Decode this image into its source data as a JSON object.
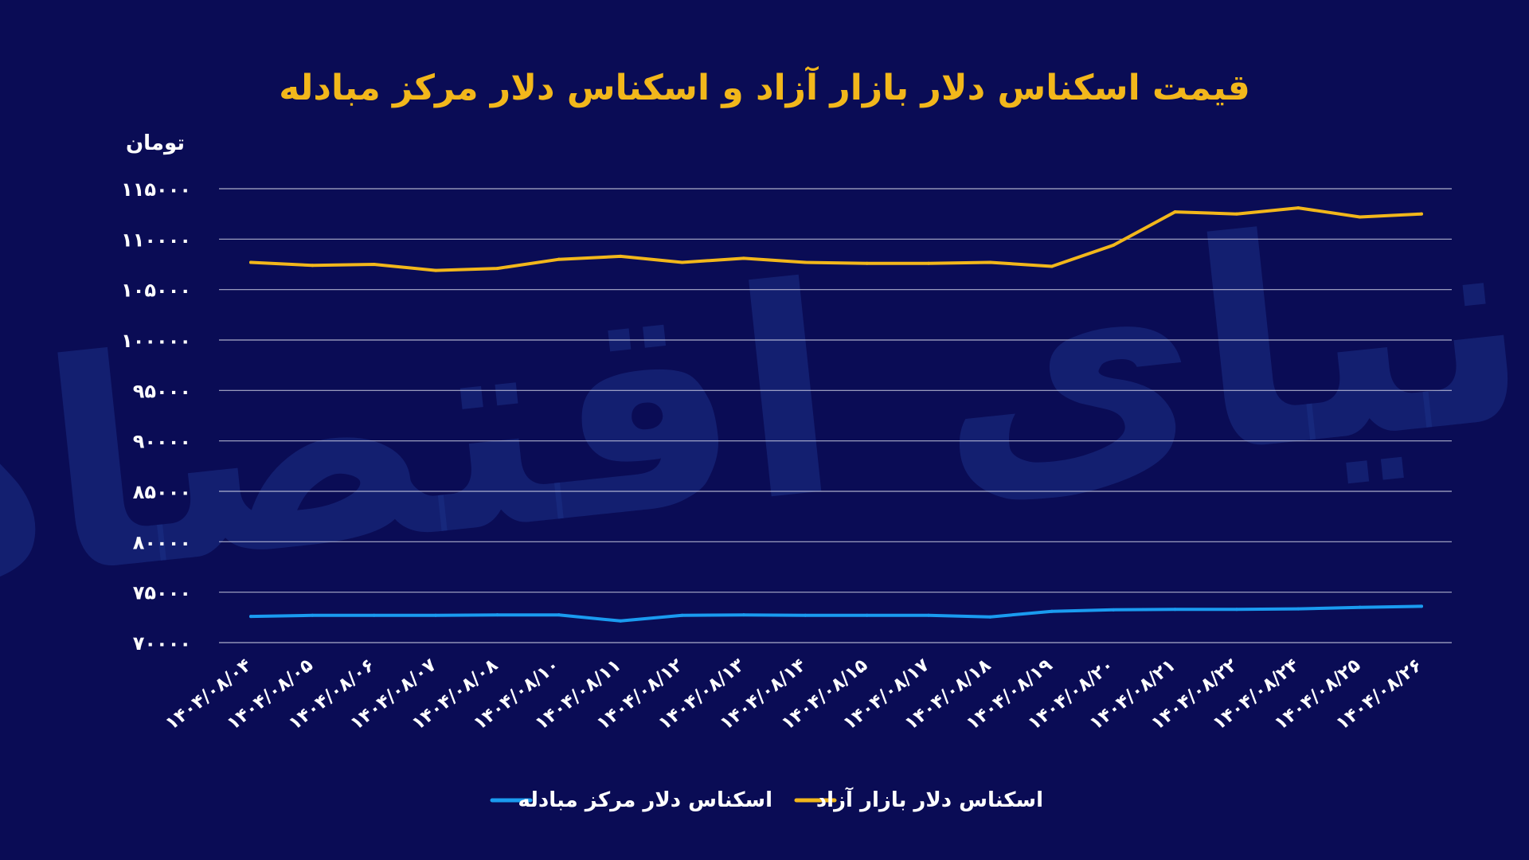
{
  "chart_data": {
    "type": "line",
    "title": "قیمت اسکناس دلار بازار آزاد و اسکناس دلار مرکز مبادله",
    "ylabel": "تومان",
    "xlabel": "",
    "ylim": [
      70000,
      115000
    ],
    "yticks": [
      70000,
      75000,
      80000,
      85000,
      90000,
      95000,
      100000,
      105000,
      110000,
      115000
    ],
    "ytick_labels": [
      "۷۰۰۰۰",
      "۷۵۰۰۰",
      "۸۰۰۰۰",
      "۸۵۰۰۰",
      "۹۰۰۰۰",
      "۹۵۰۰۰",
      "۱۰۰۰۰۰",
      "۱۰۵۰۰۰",
      "۱۱۰۰۰۰",
      "۱۱۵۰۰۰"
    ],
    "grid": true,
    "legend_position": "bottom",
    "categories": [
      "۱۴۰۴/۰۸/۰۴",
      "۱۴۰۴/۰۸/۰۵",
      "۱۴۰۴/۰۸/۰۶",
      "۱۴۰۴/۰۸/۰۷",
      "۱۴۰۴/۰۸/۰۸",
      "۱۴۰۴/۰۸/۱۰",
      "۱۴۰۴/۰۸/۱۱",
      "۱۴۰۴/۰۸/۱۲",
      "۱۴۰۴/۰۸/۱۳",
      "۱۴۰۴/۰۸/۱۴",
      "۱۴۰۴/۰۸/۱۵",
      "۱۴۰۴/۰۸/۱۷",
      "۱۴۰۴/۰۸/۱۸",
      "۱۴۰۴/۰۸/۱۹",
      "۱۴۰۴/۰۸/۲۰",
      "۱۴۰۴/۰۸/۲۱",
      "۱۴۰۴/۰۸/۲۲",
      "۱۴۰۴/۰۸/۲۴",
      "۱۴۰۴/۰۸/۲۵",
      "۱۴۰۴/۰۸/۲۶"
    ],
    "series": [
      {
        "name": "اسکناس دلار بازار آزاد",
        "color": "#f2b71b",
        "values": [
          107700,
          107400,
          107500,
          106900,
          107100,
          108000,
          108300,
          107700,
          108100,
          107700,
          107600,
          107600,
          107700,
          107300,
          109400,
          112700,
          112500,
          113100,
          112200,
          112500
        ]
      },
      {
        "name": "اسکناس دلار مرکز مبادله",
        "color": "#1a9bf0",
        "values": [
          72600,
          72700,
          72700,
          72700,
          72750,
          72750,
          72150,
          72700,
          72750,
          72700,
          72700,
          72700,
          72550,
          73100,
          73250,
          73300,
          73300,
          73350,
          73500,
          73600
        ]
      }
    ]
  },
  "watermark": "دنیای اقتصاد"
}
